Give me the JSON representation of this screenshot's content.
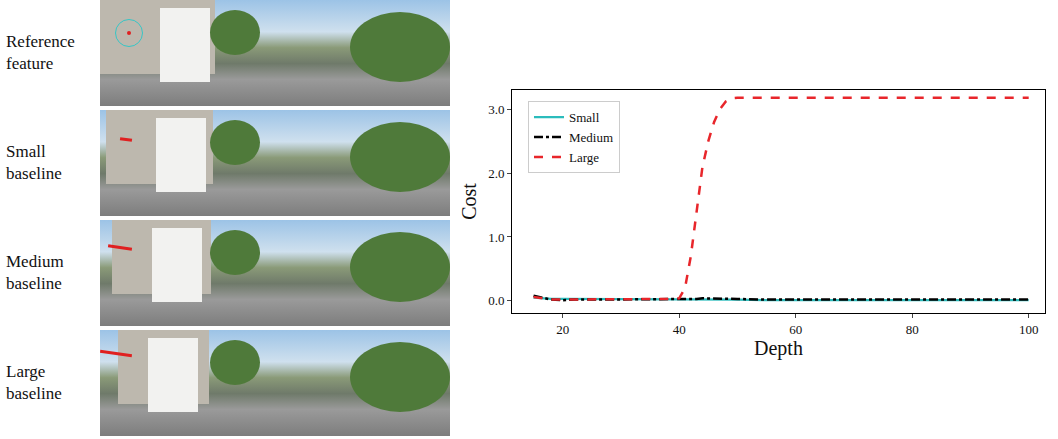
{
  "image_labels": [
    "Reference\nfeature",
    "Small\nbaseline",
    "Medium\nbaseline",
    "Large\nbaseline"
  ],
  "chart_data": {
    "type": "line",
    "x_label": "Depth",
    "y_label": "Cost",
    "x": [
      15,
      16,
      17,
      18,
      20,
      22,
      25,
      28,
      30,
      32,
      35,
      38,
      40,
      41,
      42,
      43,
      44,
      45,
      46,
      47,
      48,
      49,
      50,
      55,
      60,
      65,
      70,
      75,
      80,
      85,
      90,
      95,
      100
    ],
    "series": [
      {
        "name": "Small",
        "color": "#2bbcbc",
        "line_style": "solid",
        "values": [
          0.05,
          0.04,
          0.03,
          0.03,
          0.03,
          0.03,
          0.03,
          0.02,
          0.02,
          0.02,
          0.02,
          0.02,
          0.02,
          0.02,
          0.02,
          0.02,
          0.02,
          0.02,
          0.02,
          0.02,
          0.02,
          0.02,
          0.02,
          0.01,
          0.01,
          0.01,
          0.01,
          0.01,
          0.01,
          0.01,
          0.01,
          0.01,
          0.01
        ]
      },
      {
        "name": "Medium",
        "color": "#000000",
        "line_style": "dashdot",
        "values": [
          0.08,
          0.06,
          0.04,
          0.02,
          0.01,
          0.02,
          0.02,
          0.02,
          0.03,
          0.03,
          0.03,
          0.03,
          0.03,
          0.03,
          0.03,
          0.03,
          0.04,
          0.04,
          0.04,
          0.03,
          0.03,
          0.03,
          0.03,
          0.02,
          0.02,
          0.02,
          0.02,
          0.02,
          0.02,
          0.02,
          0.02,
          0.02,
          0.02
        ]
      },
      {
        "name": "Large",
        "color": "#e8262b",
        "line_style": "dash",
        "values": [
          0.06,
          0.05,
          0.03,
          0.02,
          0.02,
          0.02,
          0.02,
          0.02,
          0.03,
          0.03,
          0.03,
          0.03,
          0.04,
          0.2,
          0.7,
          1.4,
          2.1,
          2.5,
          2.8,
          3.0,
          3.12,
          3.17,
          3.18,
          3.18,
          3.18,
          3.18,
          3.18,
          3.18,
          3.18,
          3.18,
          3.18,
          3.18,
          3.18
        ]
      }
    ],
    "xlim": [
      11.3,
      102.8
    ],
    "xticks": [
      20,
      40,
      60,
      80,
      100
    ],
    "ylim": [
      -0.19,
      3.3
    ],
    "yticks": [
      {
        "value": 0,
        "label": "0.0"
      },
      {
        "value": 1,
        "label": "1.0"
      },
      {
        "value": 2,
        "label": "2.0"
      },
      {
        "value": 3,
        "label": "3.0"
      }
    ],
    "grid": false,
    "legend": "top-left"
  }
}
